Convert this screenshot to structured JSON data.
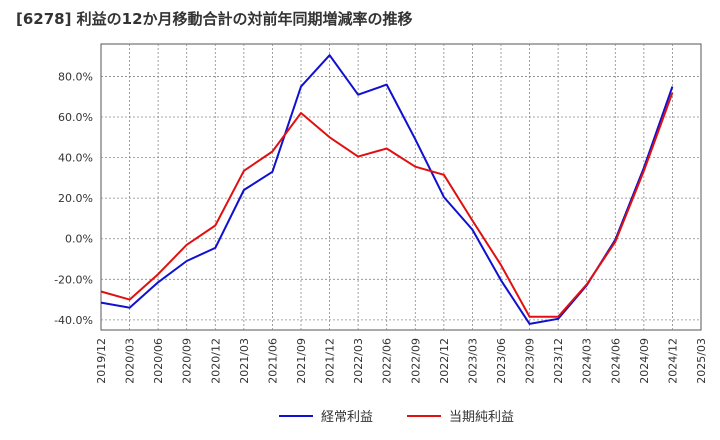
{
  "chart_data": {
    "type": "line",
    "title": "[6278]  利益の12か月移動合計の対前年同期増減率の推移",
    "xlabel": "",
    "ylabel": "",
    "ylim": [
      -45,
      96
    ],
    "y_ticks": [
      -40,
      -20,
      0,
      20,
      40,
      60,
      80
    ],
    "y_tick_labels": [
      "-40.0%",
      "-20.0%",
      "0.0%",
      "20.0%",
      "40.0%",
      "60.0%",
      "80.0%"
    ],
    "categories": [
      "2019/12",
      "2020/03",
      "2020/06",
      "2020/09",
      "2020/12",
      "2021/03",
      "2021/06",
      "2021/09",
      "2021/12",
      "2022/03",
      "2022/06",
      "2022/09",
      "2022/12",
      "2023/03",
      "2023/06",
      "2023/09",
      "2023/12",
      "2024/03",
      "2024/06",
      "2024/09",
      "2024/12",
      "2025/03"
    ],
    "grid": true,
    "legend_position": "bottom",
    "series": [
      {
        "name": "経常利益",
        "color": "#1010d0",
        "values": [
          -31.5,
          -34,
          -21.5,
          -11,
          -4.5,
          24,
          33,
          75,
          90.5,
          71,
          76,
          49,
          20.5,
          4.5,
          -20.5,
          -42,
          -39.5,
          -23,
          -0.5,
          35,
          75,
          null
        ]
      },
      {
        "name": "当期純利益",
        "color": "#e01010",
        "values": [
          -26,
          -30,
          -17.5,
          -3,
          6.5,
          33.5,
          43,
          62,
          50,
          40.5,
          44.5,
          35.5,
          31.5,
          9,
          -13,
          -38.5,
          -38.5,
          -22.5,
          -1.5,
          33.5,
          72,
          null
        ]
      }
    ]
  }
}
